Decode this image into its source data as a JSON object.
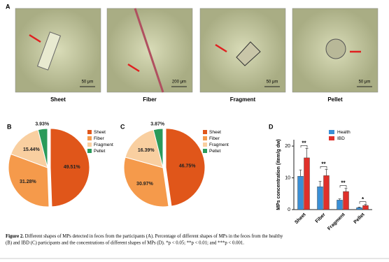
{
  "panel_labels": [
    "A",
    "B",
    "C",
    "D"
  ],
  "photos": [
    {
      "label": "Sheet",
      "scale": "50 μm"
    },
    {
      "label": "Fiber",
      "scale": "200 μm"
    },
    {
      "label": "Fragment",
      "scale": "50 μm"
    },
    {
      "label": "Pellet",
      "scale": "50 μm"
    }
  ],
  "chart_data": [
    {
      "type": "pie",
      "categories": [
        "Sheet",
        "Fiber",
        "Fragment",
        "Pellet"
      ],
      "values": [
        49.51,
        31.28,
        15.44,
        3.93
      ],
      "value_labels": [
        "49.51%",
        "31.28%",
        "15.44%",
        "3.93%"
      ],
      "colors": [
        "#e0561a",
        "#f59a4b",
        "#f9cfa0",
        "#2a9a5a"
      ]
    },
    {
      "type": "pie",
      "categories": [
        "Sheet",
        "Fiber",
        "Fragment",
        "Pellet"
      ],
      "values": [
        46.75,
        30.97,
        16.39,
        3.87
      ],
      "value_labels": [
        "46.75%",
        "30.97%",
        "16.39%",
        "3.87%"
      ],
      "colors": [
        "#e0561a",
        "#f59a4b",
        "#f9cfa0",
        "#2a9a5a"
      ]
    },
    {
      "type": "bar",
      "y_label": "MPs concentration (item/g dw)",
      "categories": [
        "Sheet",
        "Fiber",
        "Fragment",
        "Pellet"
      ],
      "series": [
        {
          "name": "Health",
          "color": "#3a8fd6",
          "values": [
            10.5,
            7.2,
            3.0,
            0.6
          ],
          "errors": [
            2,
            1.7,
            0.4,
            0.2
          ]
        },
        {
          "name": "IBD",
          "color": "#e0302a",
          "values": [
            16.3,
            10.7,
            5.7,
            1.3
          ],
          "errors": [
            3,
            2,
            1,
            0.3
          ]
        }
      ],
      "significance": [
        "**",
        "**",
        "**",
        "*"
      ],
      "ylim": [
        0,
        22
      ],
      "yticks": [
        0,
        10,
        20
      ]
    }
  ],
  "caption": {
    "label": "Figure 2.",
    "lines": [
      " Different shapes of MPs detected in feces from the participants (A). Percentage of different shapes of MPs in the feces from the healthy",
      "(B) and IBD (C) participants and the concentrations of different shapes of MPs (D). *p < 0.05; **p < 0.01; and ***p < 0.001."
    ]
  }
}
